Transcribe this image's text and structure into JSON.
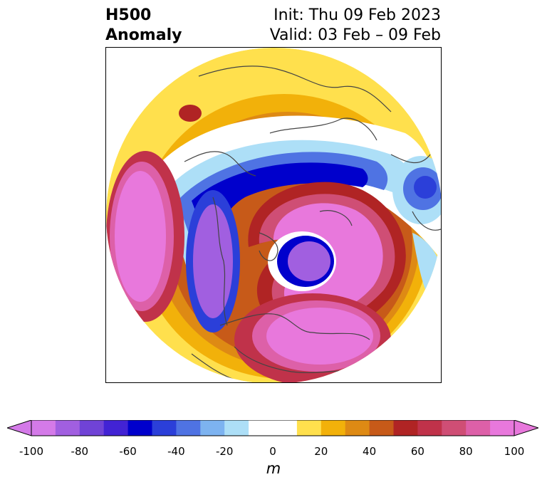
{
  "title": {
    "field": "H500",
    "kind": "Anomaly",
    "init": "Init: Thu 09 Feb 2023",
    "valid": "Valid: 03 Feb – 09 Feb"
  },
  "colorbar": {
    "unit": "m",
    "min": -100,
    "max": 100,
    "step": 10,
    "extend": "both",
    "ticks": [
      "-100",
      "-80",
      "-60",
      "-40",
      "-20",
      "0",
      "20",
      "40",
      "60",
      "80",
      "100"
    ],
    "colors": [
      "#d47ae8",
      "#a15fe0",
      "#7043d6",
      "#4223d4",
      "#0000cc",
      "#2b3fd9",
      "#4f73e3",
      "#7db3f0",
      "#addff7",
      "#ffffff",
      "#ffe04d",
      "#f2b10a",
      "#de8a14",
      "#c75a19",
      "#b02424",
      "#c0324a",
      "#cf4e75",
      "#dd60a8",
      "#e878dc"
    ]
  },
  "map": {
    "projection": "north polar stereographic",
    "description_colors": {
      "strong_negative": "#0000cc",
      "strong_positive": "#e878dc"
    }
  }
}
